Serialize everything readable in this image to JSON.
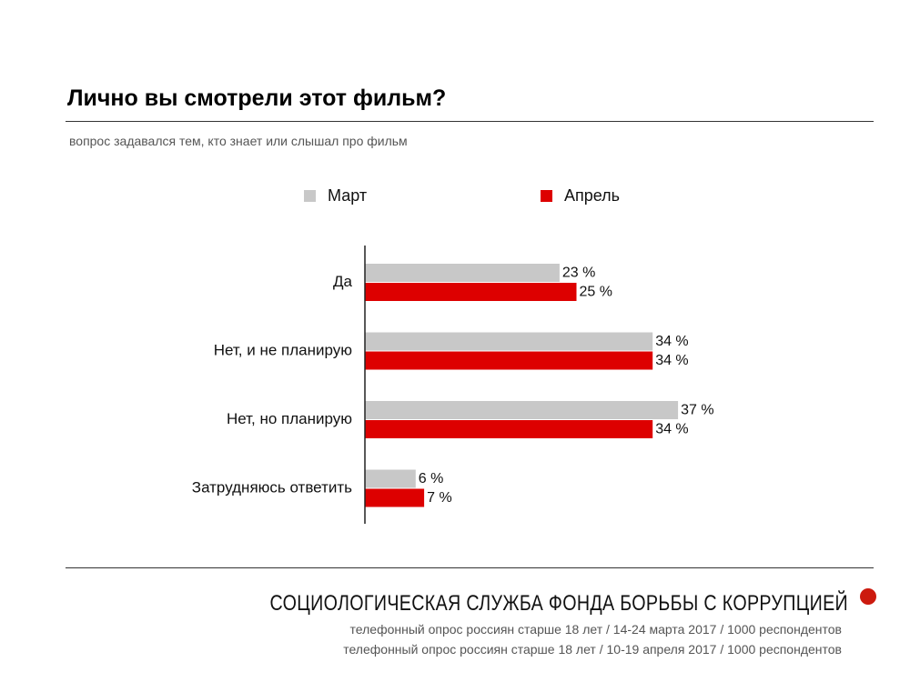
{
  "title": "Лично вы смотрели этот фильм?",
  "subtitle": "вопрос задавался тем, кто знает или слышал про фильм",
  "colors": {
    "march": "#c8c8c8",
    "april": "#dd0000",
    "axis": "#222222",
    "dot": "#cc1a0e"
  },
  "chart_data": {
    "type": "bar",
    "orientation": "horizontal",
    "categories": [
      "Да",
      "Нет, и не планирую",
      "Нет, но планирую",
      "Затрудняюсь ответить"
    ],
    "series": [
      {
        "name": "Март",
        "values": [
          23,
          34,
          37,
          6
        ],
        "labels": [
          "23 %",
          "34 %",
          "37 %",
          "6 %"
        ]
      },
      {
        "name": "Апрель",
        "values": [
          25,
          34,
          34,
          7
        ],
        "labels": [
          "25 %",
          "34 %",
          "34 %",
          "7 %"
        ]
      }
    ],
    "legend_position": "top",
    "grid": false
  },
  "footer": {
    "org": "СОЦИОЛОГИЧЕСКАЯ СЛУЖБА ФОНДА БОРЬБЫ С КОРРУПЦИЕЙ",
    "line1": "телефонный опрос россиян старше 18 лет / 14-24 марта 2017 / 1000 респондентов",
    "line2": "телефонный опрос россиян старше 18 лет / 10-19 апреля 2017 / 1000 респондентов"
  }
}
